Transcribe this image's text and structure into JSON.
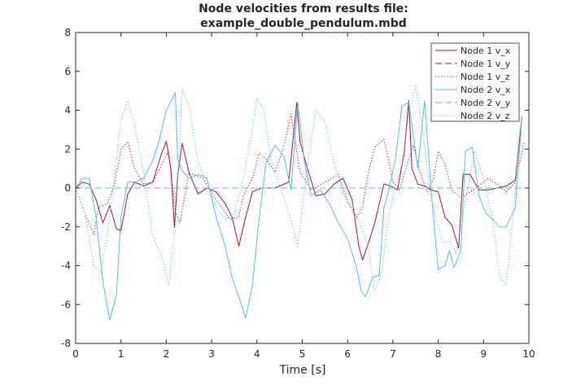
{
  "chart_data": {
    "type": "line",
    "title_lines": [
      "Node velocities from results file:",
      "example_double_pendulum.mbd"
    ],
    "xlabel": "Time [s]",
    "ylabel": "",
    "xlim": [
      0,
      10
    ],
    "ylim": [
      -8,
      8
    ],
    "xticks": [
      0,
      1,
      2,
      3,
      4,
      5,
      6,
      7,
      8,
      9,
      10
    ],
    "yticks": [
      -8,
      -6,
      -4,
      -2,
      0,
      2,
      4,
      6,
      8
    ],
    "grid": false,
    "legend_position": "top-right",
    "colors": {
      "node1": "#A2142F",
      "node2": "#4DBEEE",
      "axis": "#262626"
    },
    "series": [
      {
        "name": "Node 1 v_x",
        "color": "#A2142F",
        "style": "solid",
        "x": [
          0,
          0.15,
          0.3,
          0.45,
          0.6,
          0.75,
          0.9,
          1.0,
          1.15,
          1.3,
          1.5,
          1.7,
          1.9,
          2.0,
          2.1,
          2.18,
          2.25,
          2.35,
          2.5,
          2.7,
          2.9,
          3.1,
          3.3,
          3.45,
          3.6,
          3.75,
          3.9,
          4.1,
          4.4,
          4.7,
          4.8,
          4.88,
          4.95,
          5.1,
          5.3,
          5.5,
          5.7,
          5.9,
          6.1,
          6.25,
          6.33,
          6.45,
          6.6,
          6.8,
          6.95,
          7.1,
          7.25,
          7.35,
          7.42,
          7.55,
          7.7,
          7.85,
          8.0,
          8.15,
          8.3,
          8.45,
          8.55,
          8.7,
          8.9,
          9.1,
          9.3,
          9.5,
          9.7,
          9.85
        ],
        "y": [
          0,
          0.3,
          0.2,
          -0.6,
          -1.8,
          -0.9,
          -2.1,
          -2.2,
          -0.3,
          0.3,
          0.1,
          0.3,
          1.8,
          2.4,
          1.0,
          -2.0,
          0.6,
          2.3,
          0.8,
          -0.3,
          0,
          -0.2,
          -0.8,
          -1.5,
          -3.0,
          -1.5,
          -0.2,
          0,
          0,
          0.3,
          2.6,
          4.4,
          2.4,
          1.1,
          -0.4,
          -0.3,
          0.2,
          0.5,
          -0.6,
          -3.0,
          -3.7,
          -2.9,
          -1.8,
          0.2,
          0.1,
          -0.1,
          1.8,
          4.5,
          1.0,
          0.2,
          0.1,
          -0.1,
          -0.2,
          -1.5,
          -1.9,
          -3.1,
          0.7,
          0.7,
          -0.1,
          -0.1,
          0,
          0.1,
          0.4,
          3.7
        ]
      },
      {
        "name": "Node 1 v_y",
        "color": "#A2142F",
        "style": "dashed",
        "x": [
          0,
          10
        ],
        "y": [
          0,
          0
        ]
      },
      {
        "name": "Node 1 v_z",
        "color": "#A2142F",
        "style": "dotted",
        "x": [
          0,
          0.2,
          0.4,
          0.5,
          0.7,
          0.85,
          1.0,
          1.15,
          1.3,
          1.5,
          1.7,
          1.9,
          2.05,
          2.2,
          2.3,
          2.5,
          2.8,
          3.1,
          3.4,
          3.6,
          3.7,
          3.9,
          4.05,
          4.2,
          4.4,
          4.6,
          4.75,
          4.95,
          5.2,
          5.5,
          5.8,
          6.0,
          6.2,
          6.33,
          6.45,
          6.6,
          6.8,
          6.9,
          7.0,
          7.15,
          7.3,
          7.45,
          7.6,
          7.75,
          7.9,
          8.0,
          8.15,
          8.3,
          8.5,
          8.7,
          8.9,
          9.1,
          9.3,
          9.5,
          9.7,
          9.9
        ],
        "y": [
          0,
          -1.3,
          -2.4,
          -1.0,
          -0.8,
          0.1,
          2.0,
          2.4,
          1.0,
          0.2,
          0.3,
          1.2,
          1.9,
          -1.2,
          -1.8,
          0.8,
          0.5,
          -0.6,
          -1.6,
          -1.5,
          -0.4,
          0.5,
          1.8,
          1.5,
          0.8,
          2.2,
          3.8,
          0.8,
          -0.1,
          0.3,
          0.7,
          -0.7,
          -1.5,
          -1.0,
          0.7,
          2.1,
          2.5,
          1.5,
          0.3,
          -0.1,
          1.1,
          2.2,
          0.8,
          -0.2,
          0.5,
          1.9,
          1.2,
          -0.1,
          -0.5,
          -0.2,
          0.1,
          0.5,
          0.2,
          -0.2,
          0.3,
          2.4
        ]
      },
      {
        "name": "Node 2 v_x",
        "color": "#4DBEEE",
        "style": "solid",
        "x": [
          0,
          0.15,
          0.3,
          0.45,
          0.6,
          0.75,
          0.9,
          1.0,
          1.15,
          1.3,
          1.5,
          1.7,
          1.85,
          2.0,
          2.2,
          2.25,
          2.35,
          2.5,
          2.7,
          2.9,
          3.1,
          3.3,
          3.45,
          3.6,
          3.75,
          3.9,
          4.05,
          4.2,
          4.4,
          4.6,
          4.75,
          4.9,
          5.05,
          5.2,
          5.4,
          5.6,
          5.8,
          6.0,
          6.2,
          6.3,
          6.4,
          6.55,
          6.7,
          6.8,
          6.9,
          7.05,
          7.2,
          7.35,
          7.55,
          7.7,
          7.85,
          8.0,
          8.15,
          8.25,
          8.35,
          8.5,
          8.6,
          8.75,
          8.9,
          9.05,
          9.2,
          9.35,
          9.5,
          9.7,
          9.85
        ],
        "y": [
          0,
          0.5,
          0.5,
          -1.5,
          -4.8,
          -6.8,
          -5.5,
          -1.5,
          0.3,
          0.3,
          0.5,
          1.4,
          2.5,
          4.0,
          4.9,
          1.5,
          0.9,
          0.5,
          0.7,
          0.5,
          -1.5,
          -3.0,
          -4.6,
          -5.6,
          -6.7,
          -5.0,
          -1.5,
          1.3,
          2.2,
          1.6,
          -0.1,
          4.4,
          1.3,
          -0.4,
          -0.1,
          -0.8,
          -1.8,
          -2.6,
          -4.1,
          -5.3,
          -5.6,
          -4.6,
          -4.5,
          -1.0,
          -0.2,
          1.4,
          4.2,
          4.4,
          1.0,
          4.5,
          -0.3,
          -4.2,
          -4.0,
          -3.2,
          -4.1,
          -3.2,
          1.9,
          2.1,
          -0.4,
          -1.3,
          -1.6,
          -2.0,
          -2.0,
          -1.0,
          3.7
        ]
      },
      {
        "name": "Node 2 v_y",
        "color": "#4DBEEE",
        "style": "dashed",
        "x": [
          0,
          10
        ],
        "y": [
          0,
          0
        ]
      },
      {
        "name": "Node 2 v_z",
        "color": "#4DBEEE",
        "style": "dotted",
        "x": [
          0,
          0.2,
          0.4,
          0.55,
          0.7,
          0.85,
          1.0,
          1.15,
          1.3,
          1.5,
          1.7,
          1.9,
          2.05,
          2.2,
          2.35,
          2.5,
          2.7,
          2.9,
          3.1,
          3.3,
          3.5,
          3.7,
          3.85,
          4.0,
          4.15,
          4.3,
          4.5,
          4.7,
          4.9,
          5.1,
          5.3,
          5.5,
          5.7,
          5.9,
          6.1,
          6.3,
          6.45,
          6.6,
          6.75,
          6.9,
          7.05,
          7.2,
          7.35,
          7.5,
          7.65,
          7.8,
          7.95,
          8.1,
          8.25,
          8.4,
          8.6,
          8.8,
          9.0,
          9.2,
          9.35,
          9.5,
          9.65,
          9.8
        ],
        "y": [
          0,
          -1.3,
          -4.0,
          -4.3,
          -2.5,
          0.5,
          3.5,
          4.5,
          3.2,
          0.8,
          -2.5,
          -3.5,
          -5.0,
          -2.0,
          5.1,
          4.2,
          1.3,
          0.2,
          -1.0,
          -1.6,
          -1.3,
          0.5,
          2.4,
          4.6,
          4.0,
          1.6,
          0.1,
          -1.2,
          -3.0,
          0.9,
          4.0,
          3.4,
          1.3,
          -0.3,
          -0.8,
          -2.0,
          -3.0,
          -5.3,
          -4.4,
          -1.6,
          0.1,
          1.2,
          3.8,
          5.3,
          3.1,
          0.1,
          -1.6,
          -2.8,
          -2.7,
          -3.4,
          -0.6,
          1.9,
          0.5,
          -1.6,
          -4.5,
          -5.0,
          -1.5,
          3.0
        ]
      }
    ]
  }
}
